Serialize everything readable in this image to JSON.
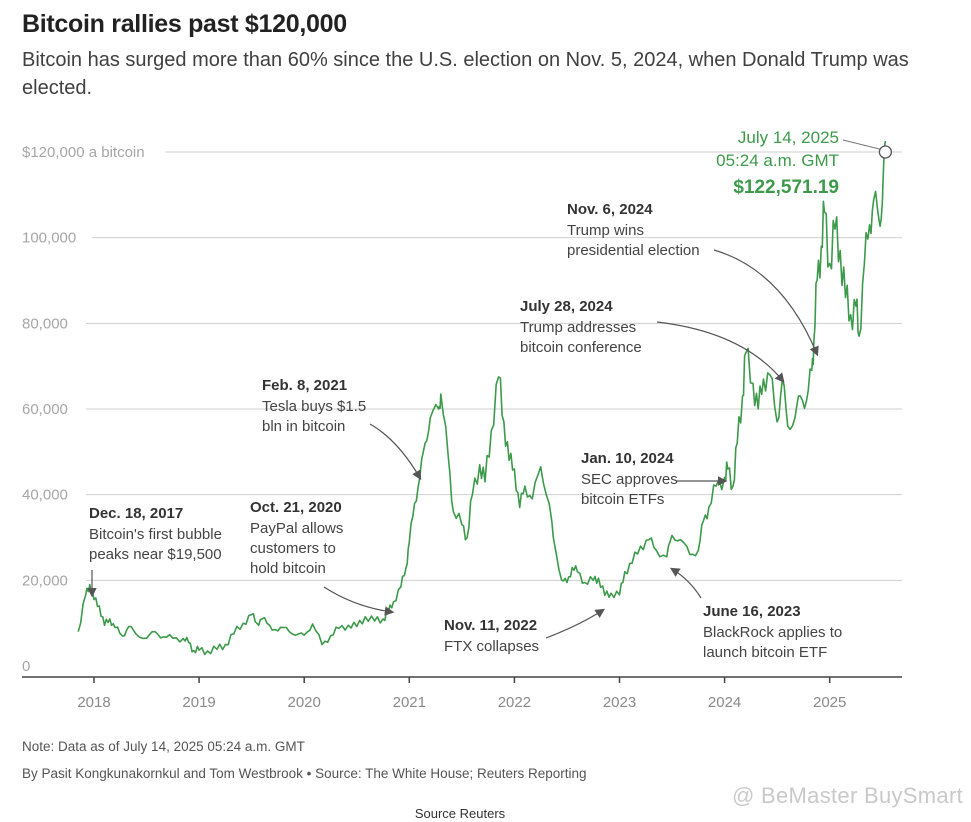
{
  "header": {
    "title": "Bitcoin rallies past $120,000",
    "subtitle": "Bitcoin has surged more than 60% since the U.S. election on Nov. 5, 2024, when Donald Trump was elected."
  },
  "footer": {
    "note": "Note: Data as of July 14, 2025 05:24 a.m. GMT",
    "byline": "By Pasit Kongkunakornkul and Tom Westbrook • Source: The White House; Reuters Reporting",
    "source": "Source Reuters",
    "watermark": "@ BeMaster BuySmart"
  },
  "chart_data": {
    "type": "line",
    "ylim": [
      0,
      120000
    ],
    "y_ticks": [
      {
        "value": 0,
        "label": "0"
      },
      {
        "value": 20000,
        "label": "20,000"
      },
      {
        "value": 40000,
        "label": "40,000"
      },
      {
        "value": 60000,
        "label": "60,000"
      },
      {
        "value": 80000,
        "label": "80,000"
      },
      {
        "value": 100000,
        "label": "100,000"
      },
      {
        "value": 120000,
        "label": "$120,000 a bitcoin"
      }
    ],
    "x_ticks": [
      {
        "value": 2018,
        "label": "2018"
      },
      {
        "value": 2019,
        "label": "2019"
      },
      {
        "value": 2020,
        "label": "2020"
      },
      {
        "value": 2021,
        "label": "2021"
      },
      {
        "value": 2022,
        "label": "2022"
      },
      {
        "value": 2023,
        "label": "2023"
      },
      {
        "value": 2024,
        "label": "2024"
      },
      {
        "value": 2025,
        "label": "2025"
      }
    ],
    "xlim": [
      2017.3,
      2025.75
    ],
    "line_color": "#3c9a4a",
    "grid": true,
    "series": [
      {
        "values_x_y": [
          [
            2017.85,
            8000
          ],
          [
            2017.92,
            16500
          ],
          [
            2017.96,
            19000
          ],
          [
            2018.0,
            15500
          ],
          [
            2018.05,
            14000
          ],
          [
            2018.1,
            9500
          ],
          [
            2018.15,
            11000
          ],
          [
            2018.2,
            9000
          ],
          [
            2018.27,
            7000
          ],
          [
            2018.33,
            9200
          ],
          [
            2018.4,
            7500
          ],
          [
            2018.5,
            6500
          ],
          [
            2018.58,
            8000
          ],
          [
            2018.66,
            6800
          ],
          [
            2018.75,
            6500
          ],
          [
            2018.85,
            6400
          ],
          [
            2018.9,
            5500
          ],
          [
            2018.95,
            3600
          ],
          [
            2019.0,
            3700
          ],
          [
            2019.08,
            3500
          ],
          [
            2019.17,
            3900
          ],
          [
            2019.25,
            5000
          ],
          [
            2019.33,
            7500
          ],
          [
            2019.42,
            10000
          ],
          [
            2019.5,
            12000
          ],
          [
            2019.55,
            10000
          ],
          [
            2019.6,
            11000
          ],
          [
            2019.67,
            9500
          ],
          [
            2019.75,
            8200
          ],
          [
            2019.83,
            9000
          ],
          [
            2019.92,
            7200
          ],
          [
            2020.0,
            7200
          ],
          [
            2020.08,
            9800
          ],
          [
            2020.17,
            5000
          ],
          [
            2020.25,
            7000
          ],
          [
            2020.33,
            8800
          ],
          [
            2020.42,
            9500
          ],
          [
            2020.5,
            9200
          ],
          [
            2020.58,
            11500
          ],
          [
            2020.67,
            10500
          ],
          [
            2020.75,
            11000
          ],
          [
            2020.8,
            12500
          ],
          [
            2020.85,
            15000
          ],
          [
            2020.92,
            18500
          ],
          [
            2020.97,
            23000
          ],
          [
            2021.0,
            29000
          ],
          [
            2021.05,
            38000
          ],
          [
            2021.1,
            44000
          ],
          [
            2021.15,
            52000
          ],
          [
            2021.2,
            58000
          ],
          [
            2021.28,
            60000
          ],
          [
            2021.3,
            63500
          ],
          [
            2021.37,
            49000
          ],
          [
            2021.42,
            36000
          ],
          [
            2021.5,
            33000
          ],
          [
            2021.55,
            30000
          ],
          [
            2021.6,
            40000
          ],
          [
            2021.67,
            47000
          ],
          [
            2021.72,
            43000
          ],
          [
            2021.78,
            55000
          ],
          [
            2021.85,
            67500
          ],
          [
            2021.9,
            57000
          ],
          [
            2021.95,
            48000
          ],
          [
            2022.0,
            46000
          ],
          [
            2022.05,
            37000
          ],
          [
            2022.1,
            42000
          ],
          [
            2022.17,
            39000
          ],
          [
            2022.25,
            46500
          ],
          [
            2022.33,
            38000
          ],
          [
            2022.37,
            30000
          ],
          [
            2022.45,
            20000
          ],
          [
            2022.5,
            19500
          ],
          [
            2022.55,
            23000
          ],
          [
            2022.6,
            22000
          ],
          [
            2022.67,
            19500
          ],
          [
            2022.75,
            20000
          ],
          [
            2022.8,
            20500
          ],
          [
            2022.86,
            16500
          ],
          [
            2022.92,
            17000
          ],
          [
            2023.0,
            16600
          ],
          [
            2023.05,
            22000
          ],
          [
            2023.12,
            24000
          ],
          [
            2023.2,
            28000
          ],
          [
            2023.28,
            29500
          ],
          [
            2023.35,
            27000
          ],
          [
            2023.45,
            25500
          ],
          [
            2023.5,
            30500
          ],
          [
            2023.58,
            29500
          ],
          [
            2023.67,
            26000
          ],
          [
            2023.75,
            27000
          ],
          [
            2023.8,
            34000
          ],
          [
            2023.85,
            37000
          ],
          [
            2023.92,
            42000
          ],
          [
            2024.0,
            44000
          ],
          [
            2024.03,
            46000
          ],
          [
            2024.08,
            42000
          ],
          [
            2024.12,
            52000
          ],
          [
            2024.17,
            63000
          ],
          [
            2024.2,
            73000
          ],
          [
            2024.27,
            66000
          ],
          [
            2024.32,
            60000
          ],
          [
            2024.37,
            67000
          ],
          [
            2024.43,
            68000
          ],
          [
            2024.5,
            57000
          ],
          [
            2024.55,
            67000
          ],
          [
            2024.6,
            56000
          ],
          [
            2024.67,
            58000
          ],
          [
            2024.72,
            63000
          ],
          [
            2024.78,
            62000
          ],
          [
            2024.83,
            69000
          ],
          [
            2024.85,
            76000
          ],
          [
            2024.88,
            90000
          ],
          [
            2024.92,
            98000
          ],
          [
            2024.95,
            106000
          ],
          [
            2025.0,
            94000
          ],
          [
            2025.05,
            102000
          ],
          [
            2025.1,
            97000
          ],
          [
            2025.15,
            86000
          ],
          [
            2025.2,
            82000
          ],
          [
            2025.25,
            84000
          ],
          [
            2025.28,
            77000
          ],
          [
            2025.33,
            94000
          ],
          [
            2025.38,
            103000
          ],
          [
            2025.42,
            109000
          ],
          [
            2025.47,
            104000
          ],
          [
            2025.5,
            108000
          ],
          [
            2025.53,
            122571
          ]
        ]
      }
    ],
    "peak_marker": {
      "x": 2025.53,
      "y": 122571,
      "date_line1": "July 14, 2025",
      "date_line2": "05:24 a.m. GMT",
      "value": "$122,571.19"
    },
    "annotations": [
      {
        "date": "Dec. 18, 2017",
        "lines": [
          "Bitcoin's first bubble",
          "peaks near $19,500"
        ]
      },
      {
        "date": "Oct. 21, 2020",
        "lines": [
          "PayPal allows",
          "customers to",
          "hold bitcoin"
        ]
      },
      {
        "date": "Feb. 8, 2021",
        "lines": [
          "Tesla buys $1.5",
          "bln in bitcoin"
        ]
      },
      {
        "date": "Nov. 11, 2022",
        "lines": [
          "FTX collapses"
        ]
      },
      {
        "date": "June 16, 2023",
        "lines": [
          "BlackRock applies to",
          "launch bitcoin ETF"
        ]
      },
      {
        "date": "Jan. 10, 2024",
        "lines": [
          "SEC approves",
          "bitcoin ETFs"
        ]
      },
      {
        "date": "July 28, 2024",
        "lines": [
          "Trump addresses",
          "bitcoin conference"
        ]
      },
      {
        "date": "Nov. 6, 2024",
        "lines": [
          "Trump wins",
          "presidential election"
        ]
      }
    ]
  }
}
